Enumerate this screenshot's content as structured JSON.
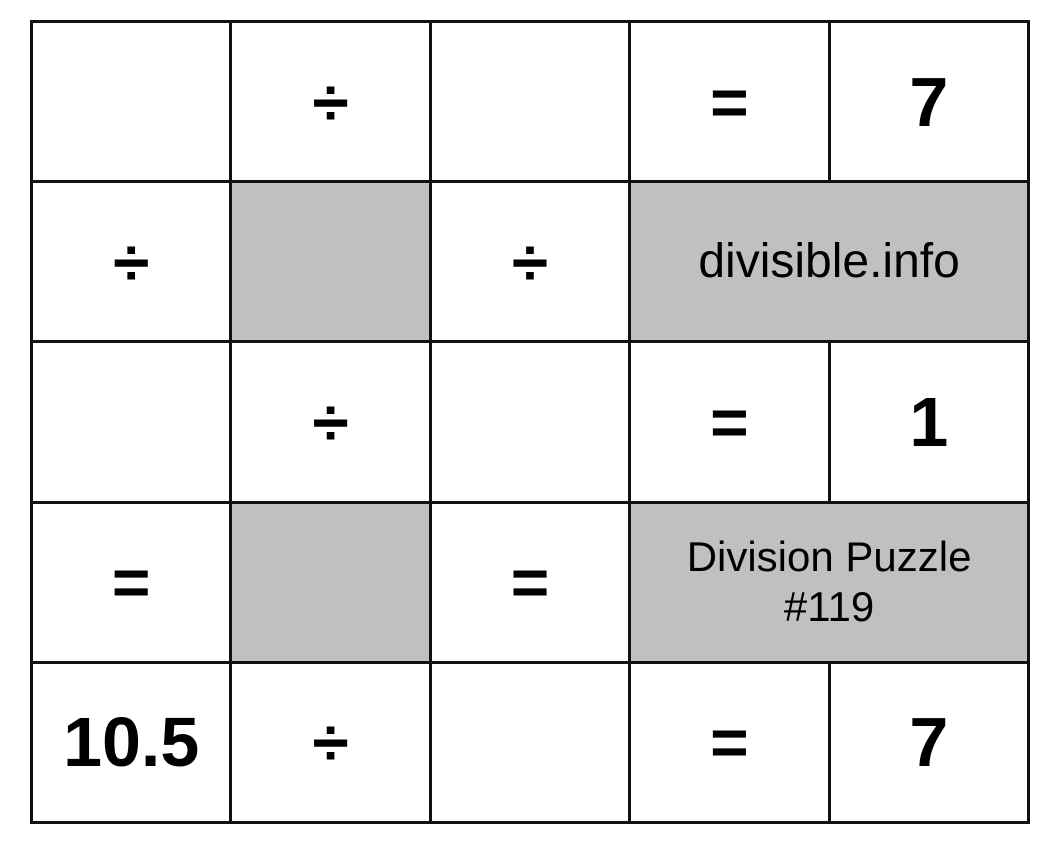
{
  "colors": {
    "blocked_cell": "#c0c0c0",
    "grid_line": "#111111"
  },
  "rows": [
    [
      {
        "t": "",
        "k": "input"
      },
      {
        "t": "÷",
        "k": "op"
      },
      {
        "t": "",
        "k": "input"
      },
      {
        "t": "=",
        "k": "op"
      },
      {
        "t": "7",
        "k": "num"
      }
    ],
    [
      {
        "t": "÷",
        "k": "op"
      },
      {
        "t": "",
        "k": "gray"
      },
      {
        "t": "÷",
        "k": "op"
      },
      {
        "t": "divisible.info",
        "k": "brand"
      }
    ],
    [
      {
        "t": "",
        "k": "input"
      },
      {
        "t": "÷",
        "k": "op"
      },
      {
        "t": "",
        "k": "input"
      },
      {
        "t": "=",
        "k": "op"
      },
      {
        "t": "1",
        "k": "num"
      }
    ],
    [
      {
        "t": "=",
        "k": "op"
      },
      {
        "t": "",
        "k": "gray"
      },
      {
        "t": "=",
        "k": "op"
      },
      {
        "t": "Division Puzzle",
        "t2": "#119",
        "k": "title"
      }
    ],
    [
      {
        "t": "10.5",
        "k": "num"
      },
      {
        "t": "÷",
        "k": "op"
      },
      {
        "t": "",
        "k": "input"
      },
      {
        "t": "=",
        "k": "op"
      },
      {
        "t": "7",
        "k": "num"
      }
    ]
  ]
}
